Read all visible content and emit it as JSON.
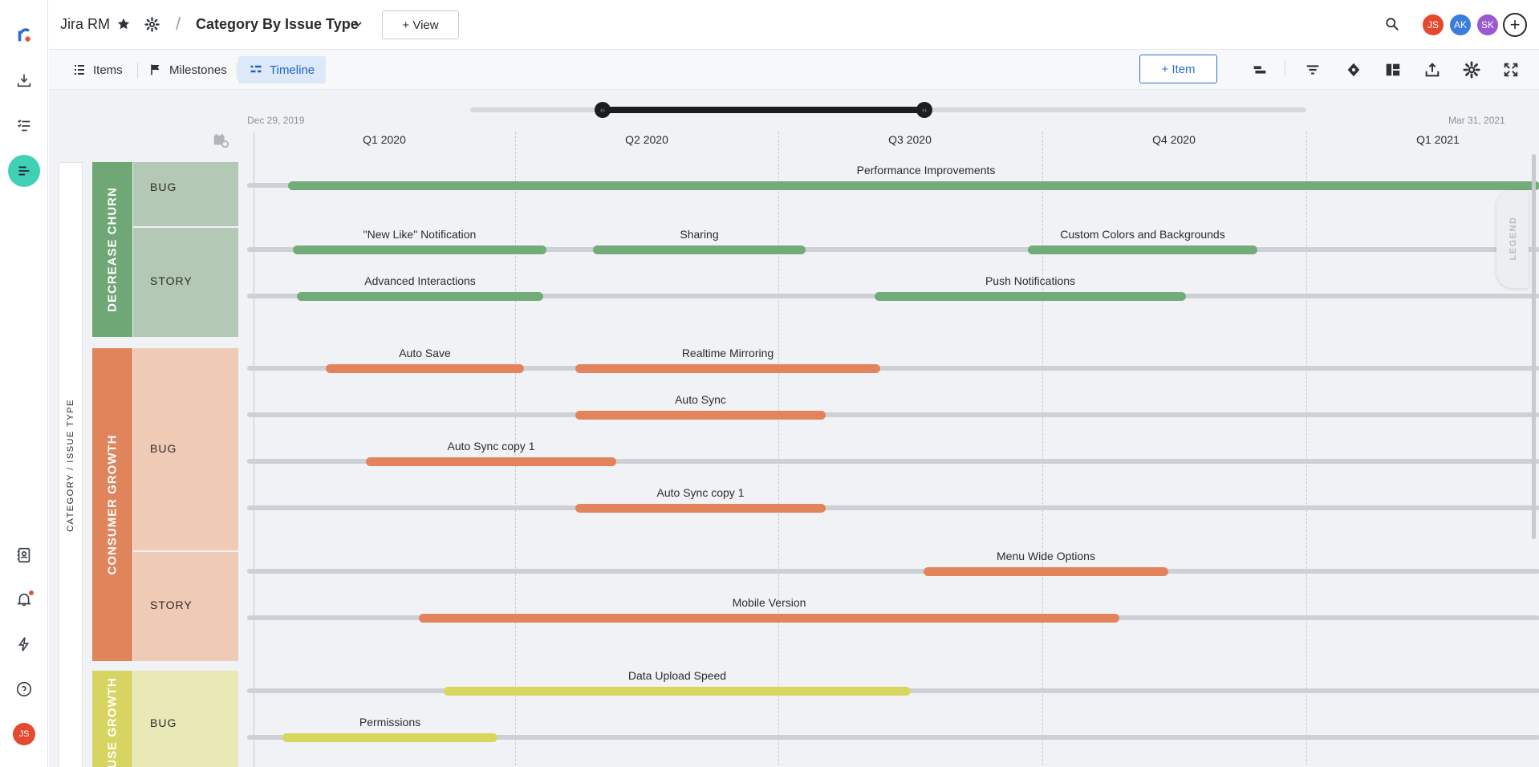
{
  "header": {
    "app_name": "Jira RM",
    "separator": "/",
    "view_title": "Category By Issue Type",
    "new_view_button": "+ View",
    "avatars": [
      {
        "initials": "JS",
        "color": "#e64a2e"
      },
      {
        "initials": "AK",
        "color": "#3b7ddd"
      },
      {
        "initials": "SK",
        "color": "#9b59d0"
      }
    ]
  },
  "sidebar": {
    "user_initials": "JS"
  },
  "tabs": [
    {
      "label": "Items",
      "icon": "list-icon"
    },
    {
      "label": "Milestones",
      "icon": "flag-icon"
    },
    {
      "label": "Timeline",
      "icon": "timeline-icon",
      "active": true
    }
  ],
  "toolbar": {
    "add_item_button": "+ Item"
  },
  "timeline": {
    "start_date": "Dec 29, 2019",
    "end_date": "Mar 31, 2021",
    "quarters": [
      "Q1 2020",
      "Q2 2020",
      "Q3 2020",
      "Q4 2020",
      "Q1 2021"
    ],
    "axis_label": "CATEGORY / ISSUE TYPE",
    "legend_label": "LEGEND",
    "categories": [
      {
        "name": "DECREASE CHURN",
        "color": "#6fa876",
        "light_color": "#b3c9b5",
        "bar_color": "#72ac78"
      },
      {
        "name": "CONSUMER GROWTH",
        "color": "#e0845c",
        "light_color": "#efcab5",
        "bar_color": "#e2835c"
      },
      {
        "name": "USE GROWTH",
        "color": "#d7d462",
        "light_color": "#e9e8b7",
        "bar_color": "#d9d65e"
      }
    ],
    "issue_types": [
      "BUG",
      "STORY",
      "BUG",
      "STORY",
      "BUG"
    ],
    "items": [
      {
        "name": "Performance Improvements",
        "category": 0
      },
      {
        "name": "\"New Like\" Notification",
        "category": 0
      },
      {
        "name": "Sharing",
        "category": 0
      },
      {
        "name": "Custom Colors and Backgrounds",
        "category": 0
      },
      {
        "name": "Advanced Interactions",
        "category": 0
      },
      {
        "name": "Push Notifications",
        "category": 0
      },
      {
        "name": "Auto Save",
        "category": 1
      },
      {
        "name": "Realtime Mirroring",
        "category": 1
      },
      {
        "name": "Auto Sync",
        "category": 1
      },
      {
        "name": "Auto Sync copy 1",
        "category": 1
      },
      {
        "name": "Auto Sync copy 1",
        "category": 1
      },
      {
        "name": "Menu Wide Options",
        "category": 1
      },
      {
        "name": "Mobile Version",
        "category": 1
      },
      {
        "name": "Data Upload Speed",
        "category": 2
      },
      {
        "name": "Permissions",
        "category": 2
      }
    ]
  }
}
